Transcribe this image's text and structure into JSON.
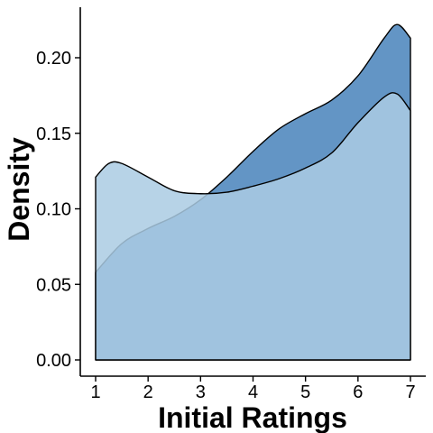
{
  "chart_data": {
    "type": "area",
    "xlabel": "Initial Ratings",
    "ylabel": "Density",
    "xlim": [
      1,
      7
    ],
    "ylim": [
      0,
      0.22
    ],
    "x_ticks": [
      1,
      2,
      3,
      4,
      5,
      6,
      7
    ],
    "x_tick_labels": [
      "1",
      "2",
      "3",
      "4",
      "5",
      "6",
      "7"
    ],
    "y_ticks": [
      0,
      0.05,
      0.1,
      0.15,
      0.2
    ],
    "y_tick_labels": [
      "0.00",
      "0.05",
      "0.10",
      "0.15",
      "0.20"
    ],
    "grid": false,
    "legend": "none",
    "series": [
      {
        "color": "#5b8fc2",
        "x": [
          1,
          1.5,
          2,
          2.5,
          3,
          3.5,
          4,
          4.5,
          5,
          5.5,
          6,
          6.5,
          6.75,
          7
        ],
        "values": [
          0.058,
          0.077,
          0.087,
          0.095,
          0.106,
          0.121,
          0.138,
          0.153,
          0.163,
          0.172,
          0.188,
          0.213,
          0.222,
          0.213
        ]
      },
      {
        "color": "#aacbe3",
        "x": [
          1,
          1.25,
          1.5,
          2,
          2.5,
          3,
          3.5,
          4,
          4.5,
          5,
          5.5,
          6,
          6.5,
          6.75,
          7
        ],
        "values": [
          0.121,
          0.13,
          0.13,
          0.121,
          0.112,
          0.11,
          0.111,
          0.115,
          0.12,
          0.127,
          0.137,
          0.157,
          0.174,
          0.176,
          0.165
        ]
      }
    ]
  }
}
